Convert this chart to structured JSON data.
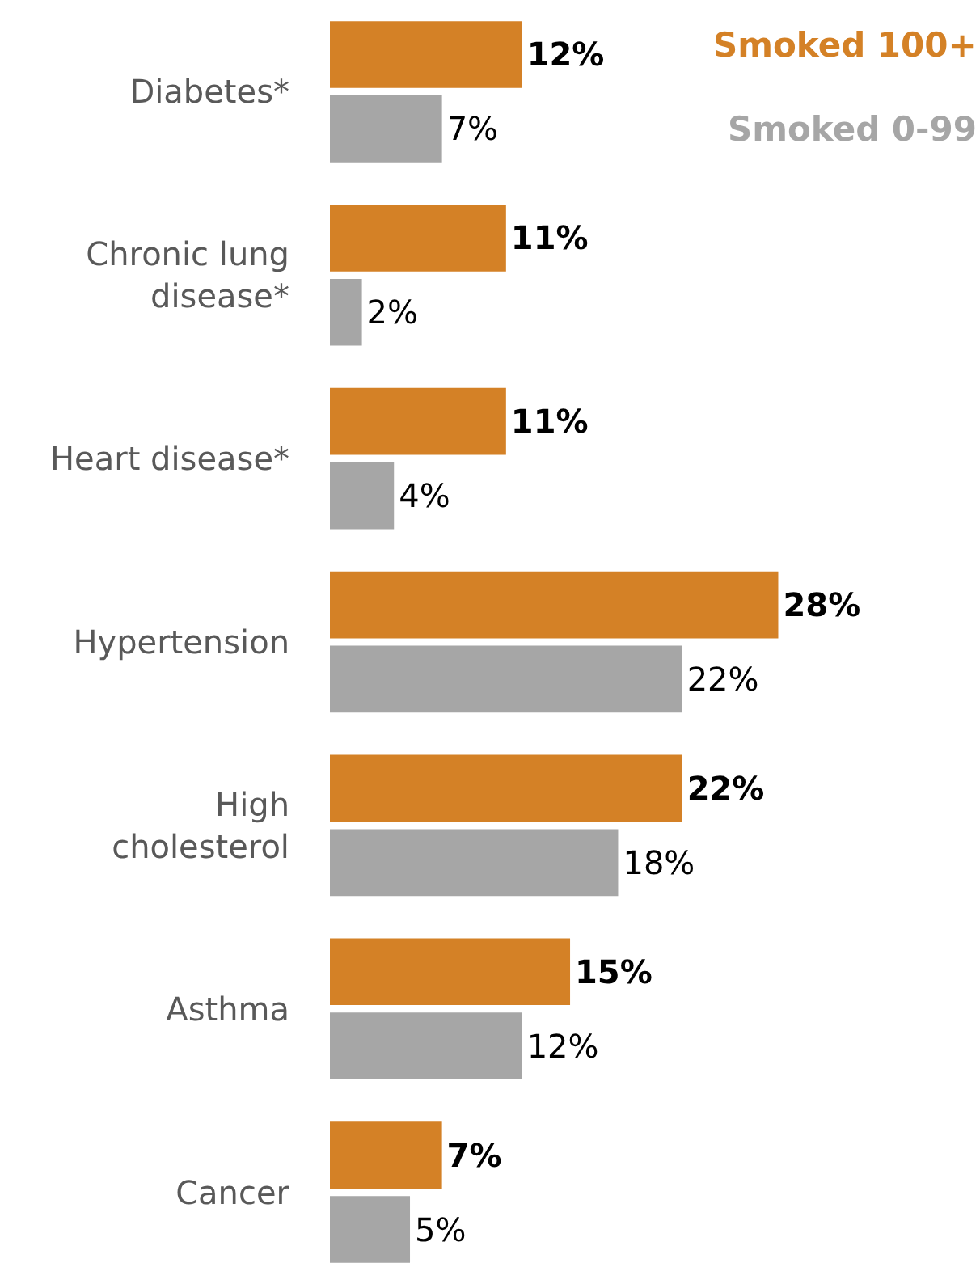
{
  "chart_data": {
    "type": "bar",
    "orientation": "horizontal",
    "tick_labels": "y",
    "legend": "top right",
    "categories": [
      "Diabetes*",
      "Chronic lung\ndisease*",
      "Heart disease*",
      "Hypertension",
      "High\ncholesterol",
      "Asthma",
      "Cancer"
    ],
    "series": [
      {
        "name": "Smoked 100+",
        "color": "#d48126",
        "values": [
          12,
          11,
          11,
          28,
          22,
          15,
          7
        ],
        "value_labels": [
          "12%",
          "11%",
          "11%",
          "28%",
          "22%",
          "15%",
          "7%"
        ]
      },
      {
        "name": "Smoked 0-99",
        "color": "#a6a6a6",
        "values": [
          7,
          2,
          4,
          22,
          18,
          12,
          5
        ],
        "value_labels": [
          "7%",
          "2%",
          "4%",
          "22%",
          "18%",
          "12%",
          "5%"
        ]
      }
    ]
  }
}
